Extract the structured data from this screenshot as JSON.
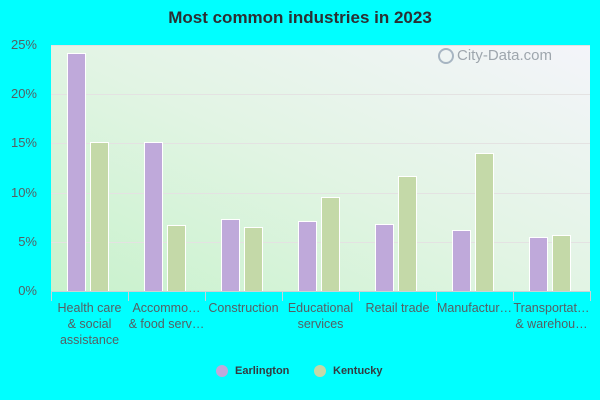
{
  "chart_data": {
    "type": "bar",
    "title": "Most common industries in 2023",
    "xlabel": "",
    "ylabel": "",
    "ylim": [
      0,
      25
    ],
    "yticks": [
      "0%",
      "5%",
      "10%",
      "15%",
      "20%",
      "25%"
    ],
    "grid": true,
    "legend_position": "bottom",
    "categories": [
      "Health care & social assistance",
      "Accommo… & food serv…",
      "Construction",
      "Educational services",
      "Retail trade",
      "Manufactur…",
      "Transportat… & warehou…"
    ],
    "series": [
      {
        "name": "Earlington",
        "color": "#bfa9da",
        "values": [
          24.2,
          15.1,
          7.3,
          7.1,
          6.8,
          6.2,
          5.5
        ]
      },
      {
        "name": "Kentucky",
        "color": "#c4d9a8",
        "values": [
          15.1,
          6.7,
          6.5,
          9.6,
          11.7,
          14.0,
          5.7
        ]
      }
    ]
  },
  "labels": {
    "title": "Most common industries in 2023",
    "yticks": [
      "25%",
      "20%",
      "15%",
      "10%",
      "5%",
      "0%"
    ],
    "x": [
      [
        "Health care",
        "& social",
        "assistance"
      ],
      [
        "Accommo…",
        "& food serv…"
      ],
      [
        "Construction"
      ],
      [
        "Educational",
        "services"
      ],
      [
        "Retail trade"
      ],
      [
        "Manufactur…"
      ],
      [
        "Transportat…",
        "& warehou…"
      ]
    ],
    "legend": [
      "Earlington",
      "Kentucky"
    ],
    "watermark": "City-Data.com"
  }
}
